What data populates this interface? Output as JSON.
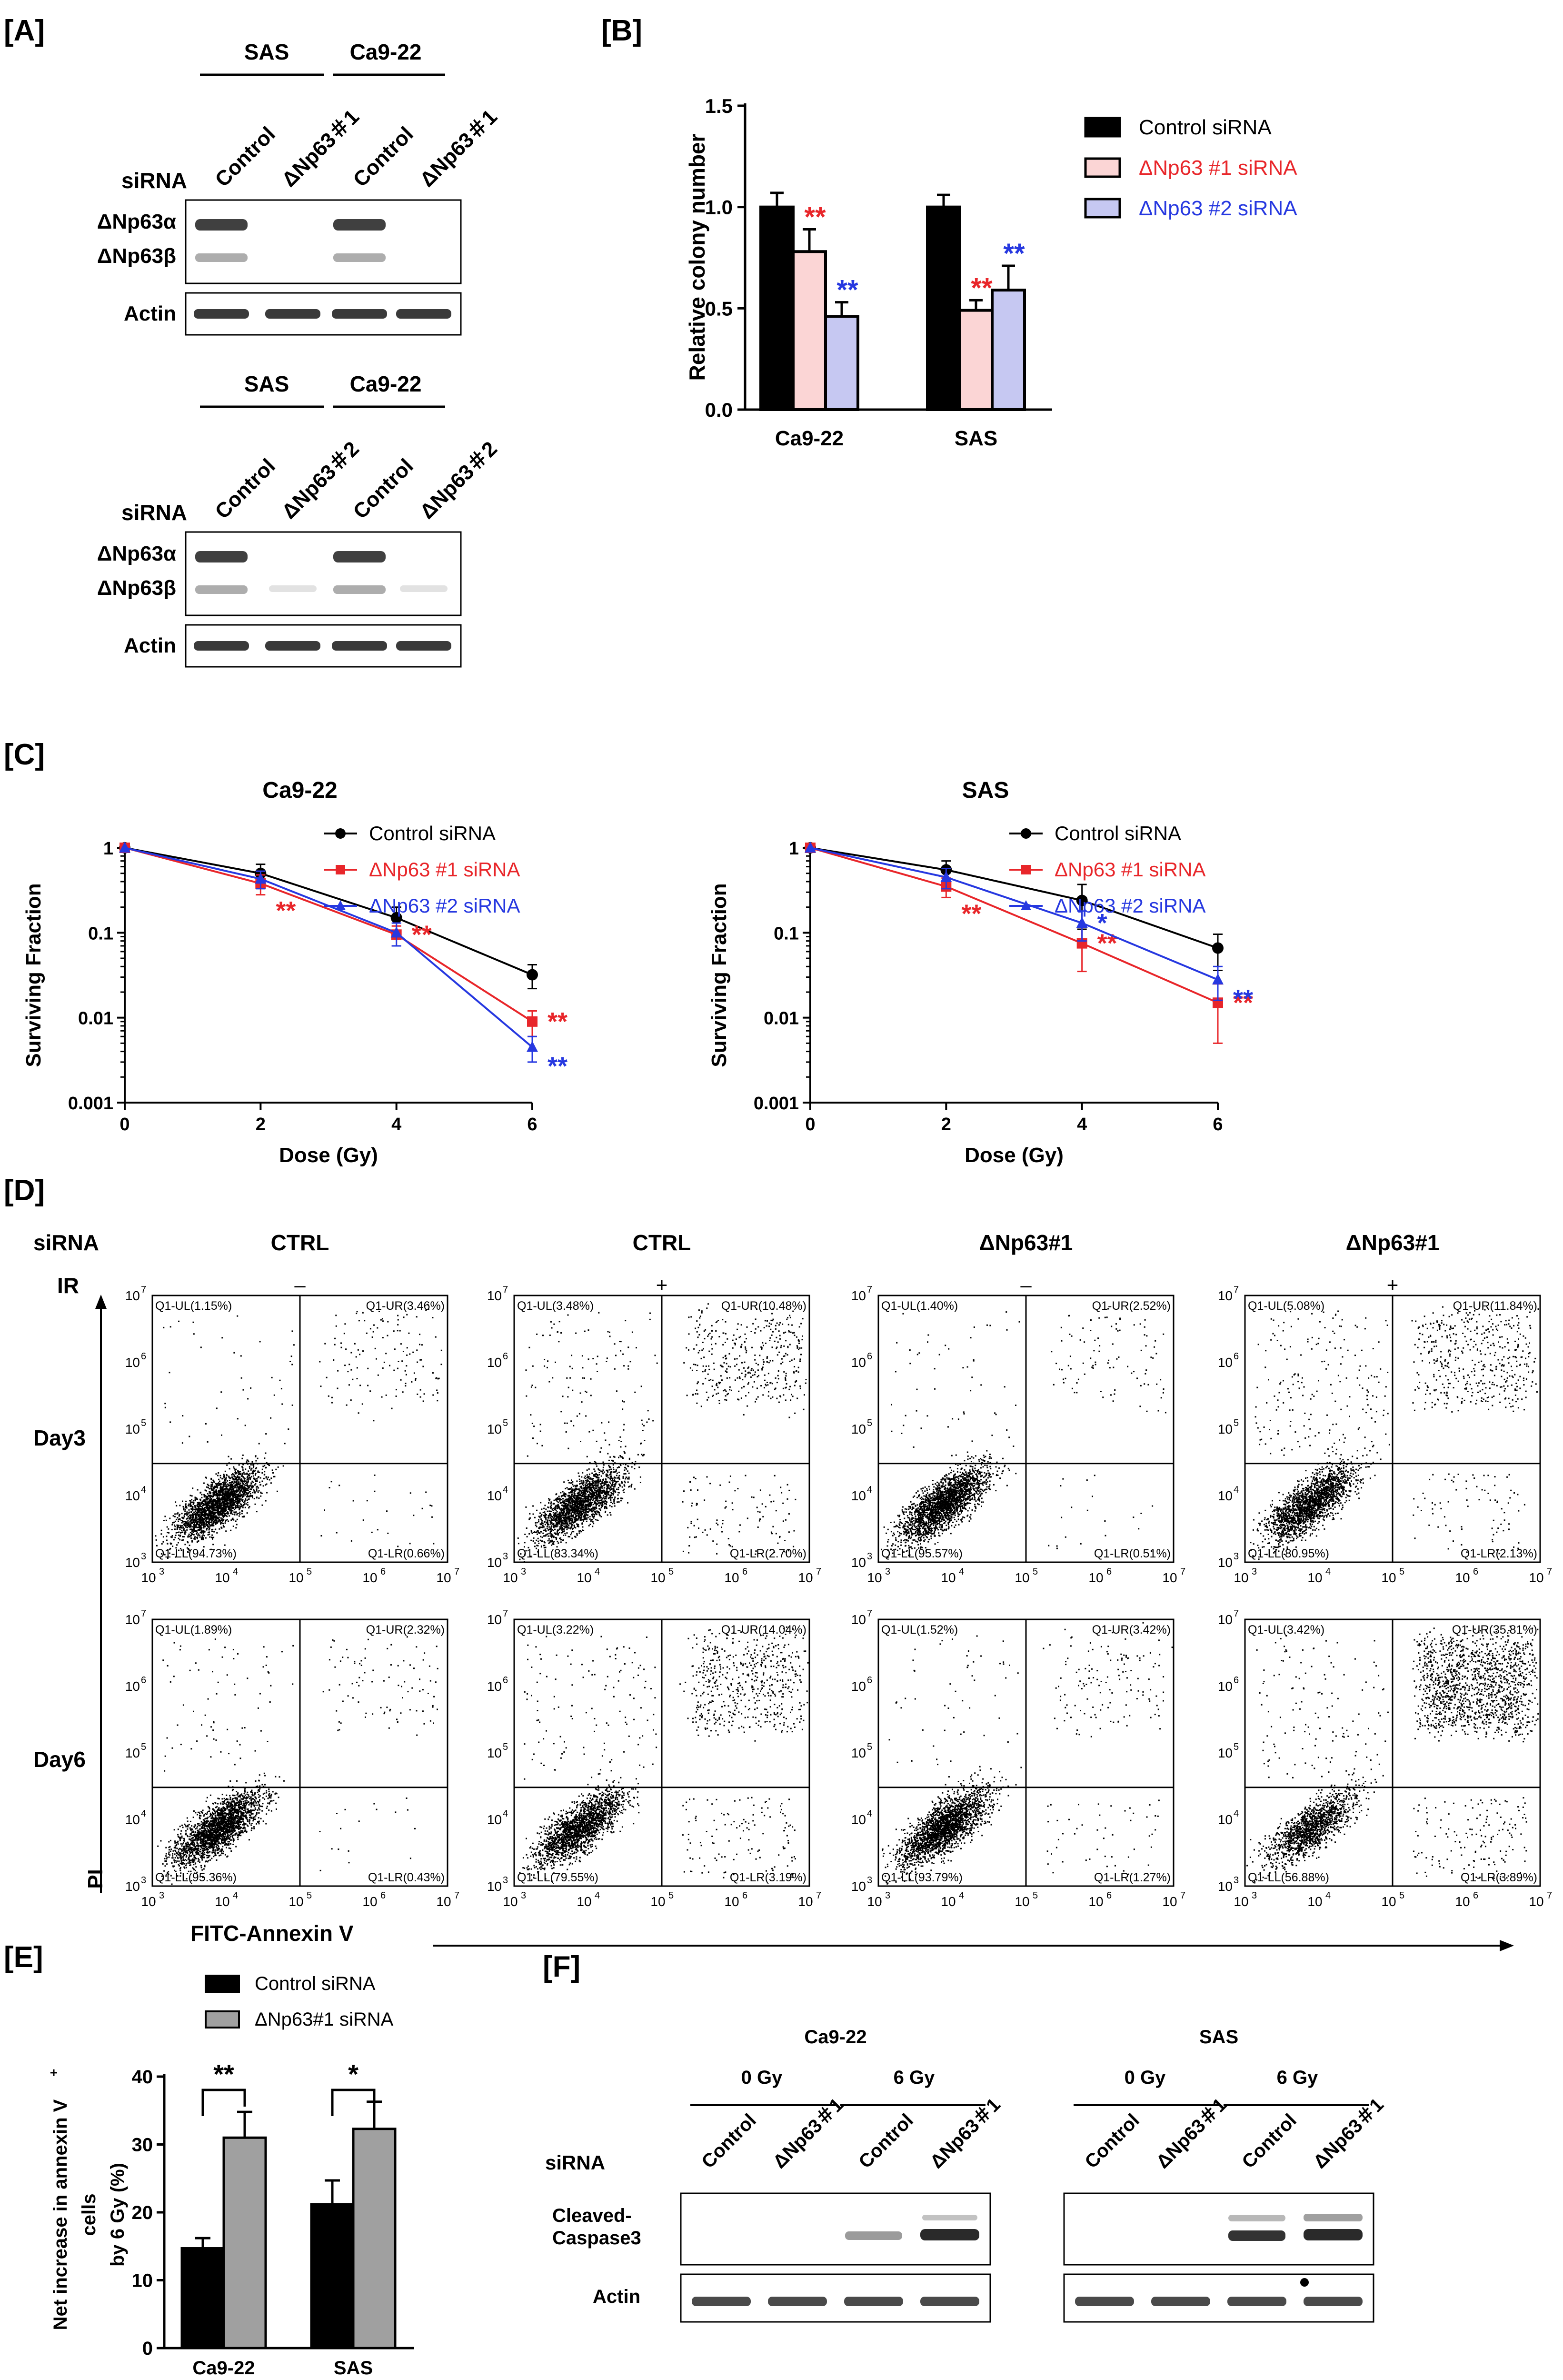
{
  "panel_labels": {
    "A": "[A]",
    "B": "[B]",
    "C": "[C]",
    "D": "[D]",
    "E": "[E]",
    "F": "[F]"
  },
  "colors": {
    "control": "#000000",
    "np1": "#e8262a",
    "np2": "#2638e0",
    "np1_fill": "#fbd5d5",
    "np2_fill": "#c6c8f2",
    "grey_bar": "#a0a0a0"
  },
  "panelA": {
    "blot1": {
      "cells": [
        "SAS",
        "Ca9-22"
      ],
      "row_label": "siRNA",
      "lanes": [
        "Control",
        "ΔNp63＃1",
        "Control",
        "ΔNp63＃1"
      ],
      "bands": [
        "ΔNp63α",
        "ΔNp63β"
      ],
      "loading": "Actin"
    },
    "blot2": {
      "cells": [
        "SAS",
        "Ca9-22"
      ],
      "row_label": "siRNA",
      "lanes": [
        "Control",
        "ΔNp63＃2",
        "Control",
        "ΔNp63＃2"
      ],
      "bands": [
        "ΔNp63α",
        "ΔNp63β"
      ],
      "loading": "Actin"
    }
  },
  "panelD": {
    "row_label_sirna": "siRNA",
    "row_label_ir": "IR",
    "columns": [
      {
        "sirna": "CTRL",
        "ir": "–"
      },
      {
        "sirna": "CTRL",
        "ir": "+"
      },
      {
        "sirna": "ΔNp63#1",
        "ir": "–"
      },
      {
        "sirna": "ΔNp63#1",
        "ir": "+"
      }
    ],
    "rows": [
      "Day3",
      "Day6"
    ],
    "ylabel": "PI",
    "xlabel": "FITC-Annexin V",
    "ticks": [
      "10",
      "10",
      "10",
      "10",
      "10"
    ],
    "tick_exps": [
      "3",
      "4",
      "5",
      "6",
      "7"
    ],
    "plots": [
      [
        {
          "ul": "Q1-UL(1.15%)",
          "ur": "Q1-UR(3.46%)",
          "ll": "Q1-LL(94.73%)",
          "lr": "Q1-LR(0.66%)"
        },
        {
          "ul": "Q1-UL(3.48%)",
          "ur": "Q1-UR(10.48%)",
          "ll": "Q1-LL(83.34%)",
          "lr": "Q1-LR(2.70%)"
        },
        {
          "ul": "Q1-UL(1.40%)",
          "ur": "Q1-UR(2.52%)",
          "ll": "Q1-LL(95.57%)",
          "lr": "Q1-LR(0.51%)"
        },
        {
          "ul": "Q1-UL(5.08%)",
          "ur": "Q1-UR(11.84%)",
          "ll": "Q1-LL(80.95%)",
          "lr": "Q1-LR(2.13%)"
        }
      ],
      [
        {
          "ul": "Q1-UL(1.89%)",
          "ur": "Q1-UR(2.32%)",
          "ll": "Q1-LL(95.36%)",
          "lr": "Q1-LR(0.43%)"
        },
        {
          "ul": "Q1-UL(3.22%)",
          "ur": "Q1-UR(14.04%)",
          "ll": "Q1-LL(79.55%)",
          "lr": "Q1-LR(3.19%)"
        },
        {
          "ul": "Q1-UL(1.52%)",
          "ur": "Q1-UR(3.42%)",
          "ll": "Q1-LL(93.79%)",
          "lr": "Q1-LR(1.27%)"
        },
        {
          "ul": "Q1-UL(3.42%)",
          "ur": "Q1-UR(35.81%)",
          "ll": "Q1-LL(56.88%)",
          "lr": "Q1-LR(3.89%)"
        }
      ]
    ]
  },
  "panelF": {
    "blots": [
      {
        "cell": "Ca9-22",
        "doses": [
          "0 Gy",
          "6 Gy"
        ],
        "lanes": [
          "Control",
          "ΔNp63＃1",
          "Control",
          "ΔNp63＃1"
        ]
      },
      {
        "cell": "SAS",
        "doses": [
          "0 Gy",
          "6 Gy"
        ],
        "lanes": [
          "Control",
          "ΔNp63＃1",
          "Control",
          "ΔNp63＃1"
        ]
      }
    ],
    "row_label": "siRNA",
    "band1": [
      "Cleaved-",
      "Caspase3"
    ],
    "band2": "Actin"
  },
  "chart_data": [
    {
      "id": "B",
      "type": "bar",
      "ylabel": "Relative colony number",
      "ylim": [
        0,
        1.5
      ],
      "yticks": [
        "0.0",
        "0.5",
        "1.0",
        "1.5"
      ],
      "categories": [
        "Ca9-22",
        "SAS"
      ],
      "series": [
        {
          "name": "Control siRNA",
          "values": [
            1.0,
            1.0
          ],
          "errors": [
            0.07,
            0.06
          ],
          "sig": [
            "",
            ""
          ]
        },
        {
          "name": "ΔNp63 #1 siRNA",
          "values": [
            0.78,
            0.49
          ],
          "errors": [
            0.11,
            0.05
          ],
          "sig": [
            "**",
            "**"
          ]
        },
        {
          "name": "ΔNp63 #2 siRNA",
          "values": [
            0.46,
            0.59
          ],
          "errors": [
            0.07,
            0.12
          ],
          "sig": [
            "**",
            "**"
          ]
        }
      ]
    },
    {
      "id": "C1",
      "type": "line",
      "title": "Ca9-22",
      "xlabel": "Dose (Gy)",
      "ylabel": "Surviving Fraction",
      "yscale": "log",
      "ylim": [
        0.001,
        1
      ],
      "xlim": [
        0,
        6
      ],
      "xticks": [
        "0",
        "2",
        "4",
        "6"
      ],
      "yticks": [
        "1",
        "0.1",
        "0.01",
        "0.001"
      ],
      "x": [
        0,
        2,
        4,
        6
      ],
      "series": [
        {
          "name": "Control siRNA",
          "values": [
            1,
            0.5,
            0.15,
            0.032
          ],
          "errors": [
            0,
            0.14,
            0.05,
            0.01
          ],
          "marker": "circle",
          "sig": [
            "",
            "",
            "",
            ""
          ]
        },
        {
          "name": "ΔNp63 #1 siRNA",
          "values": [
            1,
            0.38,
            0.095,
            0.009
          ],
          "errors": [
            0,
            0.1,
            0.025,
            0.003
          ],
          "marker": "square",
          "sig": [
            "",
            "**",
            "**",
            "**"
          ]
        },
        {
          "name": "ΔNp63 #2 siRNA",
          "values": [
            1,
            0.43,
            0.1,
            0.0045
          ],
          "errors": [
            0,
            0.1,
            0.03,
            0.0015
          ],
          "marker": "triangle",
          "sig": [
            "",
            "",
            "",
            "**"
          ]
        }
      ]
    },
    {
      "id": "C2",
      "type": "line",
      "title": "SAS",
      "xlabel": "Dose (Gy)",
      "ylabel": "Surviving Fraction",
      "yscale": "log",
      "ylim": [
        0.001,
        1
      ],
      "xlim": [
        0,
        6
      ],
      "xticks": [
        "0",
        "2",
        "4",
        "6"
      ],
      "yticks": [
        "1",
        "0.1",
        "0.01",
        "0.001"
      ],
      "x": [
        0,
        2,
        4,
        6
      ],
      "series": [
        {
          "name": "Control siRNA",
          "values": [
            1,
            0.55,
            0.24,
            0.066
          ],
          "errors": [
            0,
            0.15,
            0.13,
            0.03
          ],
          "marker": "circle",
          "sig": [
            "",
            "",
            "",
            ""
          ]
        },
        {
          "name": "ΔNp63 #1 siRNA",
          "values": [
            1,
            0.35,
            0.075,
            0.015
          ],
          "errors": [
            0,
            0.09,
            0.04,
            0.01
          ],
          "marker": "square",
          "sig": [
            "",
            "**",
            "**",
            "**"
          ]
        },
        {
          "name": "ΔNp63 #2 siRNA",
          "values": [
            1,
            0.45,
            0.13,
            0.028
          ],
          "errors": [
            0,
            0.12,
            0.05,
            0.012
          ],
          "marker": "triangle",
          "sig": [
            "",
            "",
            "*",
            "**"
          ]
        }
      ]
    },
    {
      "id": "E",
      "type": "bar",
      "ylabel_lines": [
        "Net increase in annexin V",
        "cells",
        "by 6 Gy (%)"
      ],
      "ylabel_sup": "+",
      "ylim": [
        0,
        40
      ],
      "yticks": [
        "0",
        "10",
        "20",
        "30",
        "40"
      ],
      "categories": [
        "Ca9-22",
        "SAS"
      ],
      "series": [
        {
          "name": "Control siRNA",
          "values": [
            14.7,
            21.2
          ],
          "errors": [
            1.5,
            3.5
          ]
        },
        {
          "name": "ΔNp63#1 siRNA",
          "values": [
            31.0,
            32.3
          ],
          "errors": [
            3.8,
            4.0
          ]
        }
      ],
      "sig": [
        "**",
        "*"
      ]
    }
  ]
}
